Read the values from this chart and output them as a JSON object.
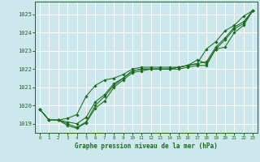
{
  "title": "Graphe pression niveau de la mer (hPa)",
  "bg_color": "#cde8ec",
  "grid_color": "#ffffff",
  "line_color": "#1a6b1a",
  "marker_color": "#1a6b1a",
  "ylim": [
    1018.5,
    1025.7
  ],
  "xlim": [
    -0.5,
    23.5
  ],
  "yticks": [
    1019,
    1020,
    1021,
    1022,
    1023,
    1024,
    1025
  ],
  "xticks": [
    0,
    1,
    2,
    3,
    4,
    5,
    6,
    7,
    8,
    9,
    10,
    11,
    12,
    13,
    14,
    15,
    16,
    17,
    18,
    19,
    20,
    21,
    22,
    23
  ],
  "series": [
    [
      1019.8,
      1019.2,
      1019.2,
      1019.0,
      1018.8,
      1019.1,
      1020.0,
      1020.5,
      1021.1,
      1021.5,
      1021.9,
      1022.0,
      1022.0,
      1022.0,
      1022.0,
      1022.0,
      1022.1,
      1022.2,
      1022.2,
      1023.1,
      1023.2,
      1024.0,
      1024.4,
      1025.2
    ],
    [
      1019.8,
      1019.2,
      1019.2,
      1019.3,
      1019.5,
      1020.5,
      1021.1,
      1021.4,
      1021.5,
      1021.7,
      1022.0,
      1022.1,
      1022.1,
      1022.1,
      1022.1,
      1022.1,
      1022.2,
      1022.3,
      1023.1,
      1023.5,
      1024.1,
      1024.4,
      1024.9,
      1025.2
    ],
    [
      1019.8,
      1019.2,
      1019.2,
      1018.9,
      1018.75,
      1019.05,
      1019.85,
      1020.25,
      1021.0,
      1021.4,
      1021.8,
      1021.9,
      1022.0,
      1022.0,
      1022.0,
      1022.1,
      1022.2,
      1022.5,
      1022.3,
      1023.1,
      1023.6,
      1024.2,
      1024.5,
      1025.2
    ],
    [
      1019.8,
      1019.2,
      1019.2,
      1019.1,
      1019.0,
      1019.35,
      1020.2,
      1020.6,
      1021.2,
      1021.5,
      1021.9,
      1022.0,
      1022.0,
      1022.0,
      1022.0,
      1022.1,
      1022.2,
      1022.3,
      1022.4,
      1023.2,
      1023.7,
      1024.3,
      1024.6,
      1025.2
    ]
  ]
}
